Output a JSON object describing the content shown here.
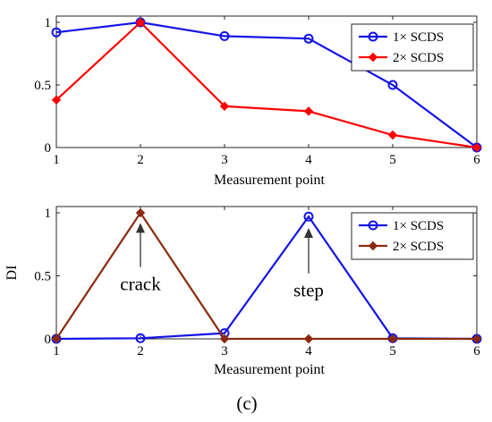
{
  "chart_data": [
    {
      "type": "line",
      "xlabel": "Measurement point",
      "ylabel": "",
      "x": [
        1,
        2,
        3,
        4,
        5,
        6
      ],
      "xlim": [
        1,
        6
      ],
      "ylim": [
        0,
        1.05
      ],
      "xticks": [
        "1",
        "2",
        "3",
        "4",
        "5",
        "6"
      ],
      "yticks": [
        "0",
        "0.5",
        "1"
      ],
      "yticks_values": [
        0,
        0.5,
        1
      ],
      "legend_position": "top-right",
      "series": [
        {
          "name": "1× SCDS",
          "color": "#1414e6",
          "marker": "circle",
          "values": [
            0.92,
            1.0,
            0.89,
            0.87,
            0.5,
            0.0
          ]
        },
        {
          "name": "2× SCDS",
          "color": "#ff0000",
          "marker": "diamond",
          "values": [
            0.38,
            1.0,
            0.33,
            0.29,
            0.1,
            0.0
          ]
        }
      ]
    },
    {
      "type": "line",
      "xlabel": "Measurement point",
      "ylabel": "DI",
      "x": [
        1,
        2,
        3,
        4,
        5,
        6
      ],
      "xlim": [
        1,
        6
      ],
      "ylim": [
        0,
        1.05
      ],
      "xticks": [
        "1",
        "2",
        "3",
        "4",
        "5",
        "6"
      ],
      "yticks": [
        "0",
        "0.5",
        "1"
      ],
      "yticks_values": [
        0,
        0.5,
        1
      ],
      "legend_position": "top-right",
      "series": [
        {
          "name": "1× SCDS",
          "color": "#1414e6",
          "marker": "circle",
          "values": [
            0.0,
            0.005,
            0.045,
            0.97,
            0.005,
            0.0
          ]
        },
        {
          "name": "2× SCDS",
          "color": "#8b2a10",
          "marker": "diamond",
          "values": [
            0.0,
            1.0,
            0.0,
            0.0,
            0.0,
            0.0
          ]
        }
      ],
      "annotations": [
        {
          "text": "crack",
          "x": 2,
          "arrow_from_y": 0.57,
          "arrow_to_y": 0.92
        },
        {
          "text": "step",
          "x": 4,
          "arrow_from_y": 0.52,
          "arrow_to_y": 0.88
        }
      ]
    }
  ],
  "caption": "(c)"
}
